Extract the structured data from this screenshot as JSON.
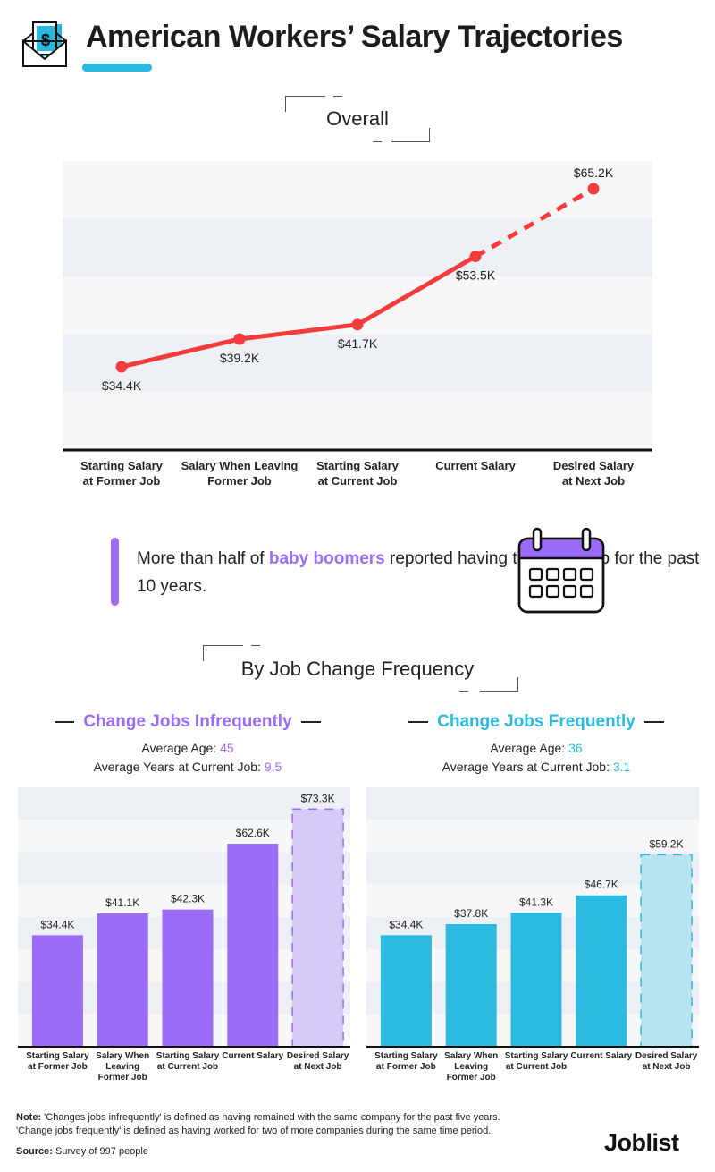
{
  "header": {
    "title": "American Workers’ Salary Trajectories",
    "icon": "envelope-dollar-icon",
    "accent_color": "#29b9e0"
  },
  "overall_section": {
    "title": "Overall"
  },
  "callout": {
    "text_before": "More than half of ",
    "highlight": "baby boomers",
    "text_after": " reported having the same job for the past 10 years.",
    "icon": "calendar-icon",
    "accent_color": "#9b6cf7"
  },
  "frequency_section": {
    "title": "By Job Change Frequency"
  },
  "groups": [
    {
      "title": "Change Jobs Infrequently",
      "color": "#9b6cf7",
      "age_label": "Average Age: ",
      "age_value": "45",
      "years_label": "Average Years at Current Job: ",
      "years_value": "9.5"
    },
    {
      "title": "Change Jobs Frequently",
      "color": "#2bbae0",
      "age_label": "Average Age: ",
      "age_value": "36",
      "years_label": "Average Years at Current Job: ",
      "years_value": "3.1"
    }
  ],
  "chart_data": [
    {
      "type": "line",
      "title": "Overall",
      "categories": [
        "Starting Salary at Former Job",
        "Salary When Leaving Former Job",
        "Starting Salary at Current Job",
        "Current Salary",
        "Desired Salary at Next Job"
      ],
      "category_lines": [
        [
          "Starting Salary",
          "at Former Job"
        ],
        [
          "Salary When Leaving",
          "Former Job"
        ],
        [
          "Starting Salary",
          "at Current Job"
        ],
        [
          "Current Salary"
        ],
        [
          "Desired Salary",
          "at Next Job"
        ]
      ],
      "values": [
        34.4,
        39.2,
        41.7,
        53.5,
        65.2
      ],
      "data_labels": [
        "$34.4K",
        "$39.2K",
        "$41.7K",
        "$53.5K",
        "$65.2K"
      ],
      "projected_from_index": 3,
      "units": "thousand USD",
      "ylim": [
        20,
        70
      ],
      "grid": "alternating bands every 10K",
      "color": "#f53b3b",
      "xlabel": "",
      "ylabel": ""
    },
    {
      "type": "bar",
      "title": "Change Jobs Infrequently",
      "categories": [
        "Starting Salary at Former Job",
        "Salary When Leaving Former Job",
        "Starting Salary at Current Job",
        "Current Salary",
        "Desired Salary at Next Job"
      ],
      "category_lines": [
        [
          "Starting Salary",
          "at Former Job"
        ],
        [
          "Salary When",
          "Leaving",
          "Former Job"
        ],
        [
          "Starting Salary",
          "at Current Job"
        ],
        [
          "Current Salary"
        ],
        [
          "Desired Salary",
          "at Next Job"
        ]
      ],
      "values": [
        34.4,
        41.1,
        42.3,
        62.6,
        73.3
      ],
      "data_labels": [
        "$34.4K",
        "$41.1K",
        "$42.3K",
        "$62.6K",
        "$73.3K"
      ],
      "projected_from_index": 4,
      "units": "thousand USD",
      "ylim": [
        0,
        80
      ],
      "color": "#9b6cf7",
      "projected_color": "#d6cbf8"
    },
    {
      "type": "bar",
      "title": "Change Jobs Frequently",
      "categories": [
        "Starting Salary at Former Job",
        "Salary When Leaving Former Job",
        "Starting Salary at Current Job",
        "Current Salary",
        "Desired Salary at Next Job"
      ],
      "category_lines": [
        [
          "Starting Salary",
          "at Former Job"
        ],
        [
          "Salary When",
          "Leaving",
          "Former Job"
        ],
        [
          "Starting Salary",
          "at Current Job"
        ],
        [
          "Current Salary"
        ],
        [
          "Desired Salary",
          "at Next Job"
        ]
      ],
      "values": [
        34.4,
        37.8,
        41.3,
        46.7,
        59.2
      ],
      "data_labels": [
        "$34.4K",
        "$37.8K",
        "$41.3K",
        "$46.7K",
        "$59.2K"
      ],
      "projected_from_index": 4,
      "units": "thousand USD",
      "ylim": [
        0,
        80
      ],
      "color": "#2bbae0",
      "projected_color": "#b8e3f1"
    }
  ],
  "footer": {
    "note_label": "Note:",
    "note_line1": " 'Changes jobs infrequently' is defined as having remained with the same company for the past five years.",
    "note_line2": "'Change jobs frequently' is defined as having worked for two of more companies during the same time period.",
    "source_label": "Source:",
    "source_text": " Survey of 997 people",
    "brand": "Joblist"
  }
}
